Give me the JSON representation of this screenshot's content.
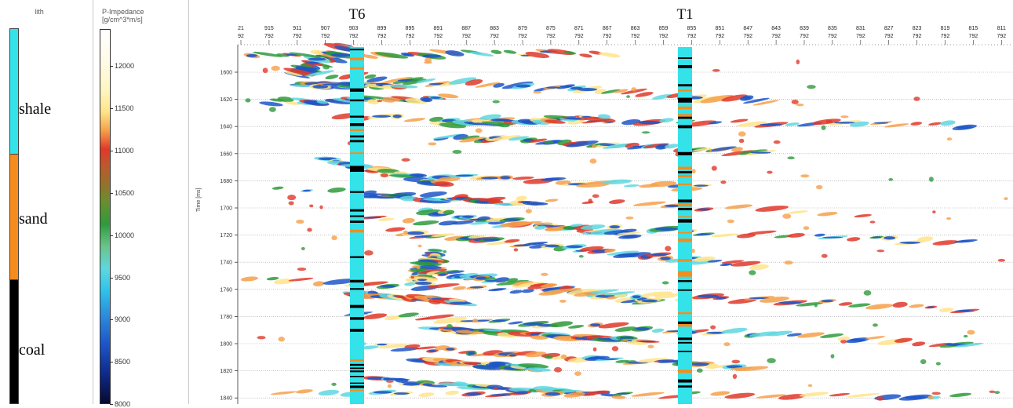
{
  "lith_panel": {
    "title": "lith",
    "items": [
      {
        "label": "shale",
        "color": "#34e3ea"
      },
      {
        "label": "sand",
        "color": "#f58c1e"
      },
      {
        "label": "coal",
        "color": "#000000"
      }
    ]
  },
  "colorbar": {
    "title_line1": "P-Impedance",
    "title_line2": "[g/cm^3*m/s]",
    "ticks": [
      "12000",
      "11500",
      "11000",
      "10500",
      "10000",
      "9500",
      "9000",
      "8500",
      "8000"
    ]
  },
  "section": {
    "time_axis_label": "Time [ms]",
    "time_ticks": [
      "1600",
      "1620",
      "1640",
      "1660",
      "1680",
      "1700",
      "1720",
      "1740",
      "1760",
      "1780",
      "1800",
      "1820",
      "1840"
    ],
    "trace_labels": [
      {
        "top": "21",
        "bottom": "92"
      },
      {
        "top": "915",
        "bottom": "792"
      },
      {
        "top": "911",
        "bottom": "792"
      },
      {
        "top": "907",
        "bottom": "792"
      },
      {
        "top": "903",
        "bottom": "792"
      },
      {
        "top": "899",
        "bottom": "792"
      },
      {
        "top": "895",
        "bottom": "792"
      },
      {
        "top": "891",
        "bottom": "792"
      },
      {
        "top": "887",
        "bottom": "792"
      },
      {
        "top": "883",
        "bottom": "792"
      },
      {
        "top": "879",
        "bottom": "792"
      },
      {
        "top": "875",
        "bottom": "792"
      },
      {
        "top": "871",
        "bottom": "792"
      },
      {
        "top": "867",
        "bottom": "792"
      },
      {
        "top": "863",
        "bottom": "792"
      },
      {
        "top": "859",
        "bottom": "792"
      },
      {
        "top": "855",
        "bottom": "792"
      },
      {
        "top": "851",
        "bottom": "792"
      },
      {
        "top": "847",
        "bottom": "792"
      },
      {
        "top": "843",
        "bottom": "792"
      },
      {
        "top": "839",
        "bottom": "792"
      },
      {
        "top": "835",
        "bottom": "792"
      },
      {
        "top": "831",
        "bottom": "792"
      },
      {
        "top": "827",
        "bottom": "792"
      },
      {
        "top": "823",
        "bottom": "792"
      },
      {
        "top": "819",
        "bottom": "792"
      },
      {
        "top": "815",
        "bottom": "792"
      },
      {
        "top": "811",
        "bottom": "792"
      }
    ],
    "wells": [
      {
        "name": "T6"
      },
      {
        "name": "T1"
      }
    ]
  }
}
